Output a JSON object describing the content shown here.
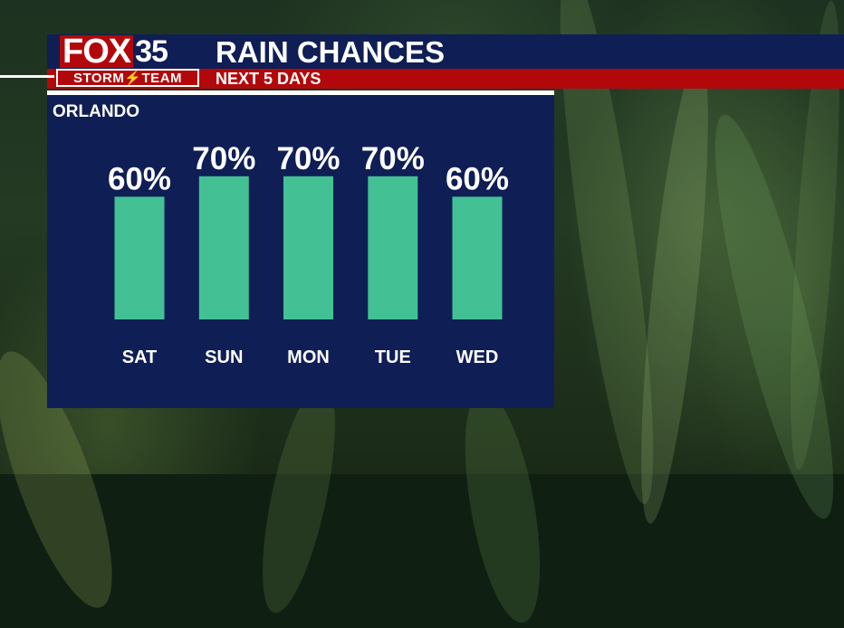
{
  "branding": {
    "logo_word": "FOX",
    "logo_number": "35",
    "logo_team": "STORM⚡TEAM"
  },
  "header": {
    "title": "RAIN CHANCES",
    "subtitle": "NEXT 5 DAYS"
  },
  "location": "ORLANDO",
  "colors": {
    "navy": "#0f1e55",
    "red": "#b3080b",
    "bar": "#43c195",
    "text": "#ffffff"
  },
  "chart_data": {
    "type": "bar",
    "categories": [
      "SAT",
      "SUN",
      "MON",
      "TUE",
      "WED"
    ],
    "values": [
      60,
      70,
      70,
      70,
      60
    ],
    "value_labels": [
      "60%",
      "70%",
      "70%",
      "70%",
      "60%"
    ],
    "unit": "%",
    "ylim": [
      0,
      100
    ],
    "grid": false,
    "legend": "none"
  }
}
